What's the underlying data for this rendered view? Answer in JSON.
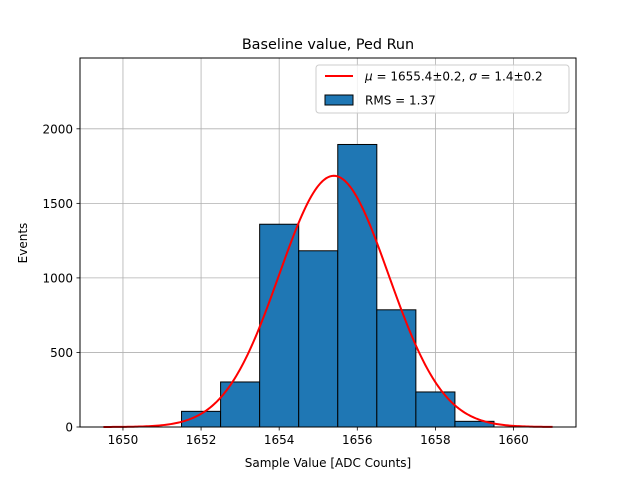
{
  "chart_data": {
    "type": "bar",
    "title": "Baseline value, Ped Run",
    "xlabel": "Sample Value [ADC Counts]",
    "ylabel": "Events",
    "xlim": [
      1648.9,
      1661.6
    ],
    "ylim": [
      0,
      2475
    ],
    "grid": true,
    "legend_position": "top-right",
    "x_ticks": [
      1650,
      1652,
      1654,
      1656,
      1658,
      1660
    ],
    "y_ticks": [
      0,
      500,
      1000,
      1500,
      2000
    ],
    "bins": [
      {
        "left": 1649.5,
        "right": 1650.5,
        "count": 0
      },
      {
        "left": 1650.5,
        "right": 1651.5,
        "count": 0
      },
      {
        "left": 1651.5,
        "right": 1652.5,
        "count": 105
      },
      {
        "left": 1652.5,
        "right": 1653.5,
        "count": 302
      },
      {
        "left": 1653.5,
        "right": 1654.5,
        "count": 1360
      },
      {
        "left": 1654.5,
        "right": 1655.5,
        "count": 1182
      },
      {
        "left": 1655.5,
        "right": 1656.5,
        "count": 1895
      },
      {
        "left": 1656.5,
        "right": 1657.5,
        "count": 786
      },
      {
        "left": 1657.5,
        "right": 1658.5,
        "count": 235
      },
      {
        "left": 1658.5,
        "right": 1659.5,
        "count": 38
      },
      {
        "left": 1659.5,
        "right": 1660.5,
        "count": 0
      }
    ],
    "fit": {
      "type": "gaussian",
      "mean": 1655.4,
      "sigma": 1.4,
      "amplitude": 1685,
      "x_range": [
        1649.5,
        1661.0
      ]
    },
    "colors": {
      "bars": "#1f77b4",
      "bar_edge": "#000000",
      "fit": "#ff0000",
      "grid": "#b0b0b0"
    },
    "legend": {
      "fit_mu_symbol": "μ",
      "fit_mu_text": " = 1655.4±0.2, ",
      "fit_sigma_symbol": "σ",
      "fit_sigma_text": " = 1.4±0.2",
      "hist_label": "RMS = 1.37"
    }
  }
}
